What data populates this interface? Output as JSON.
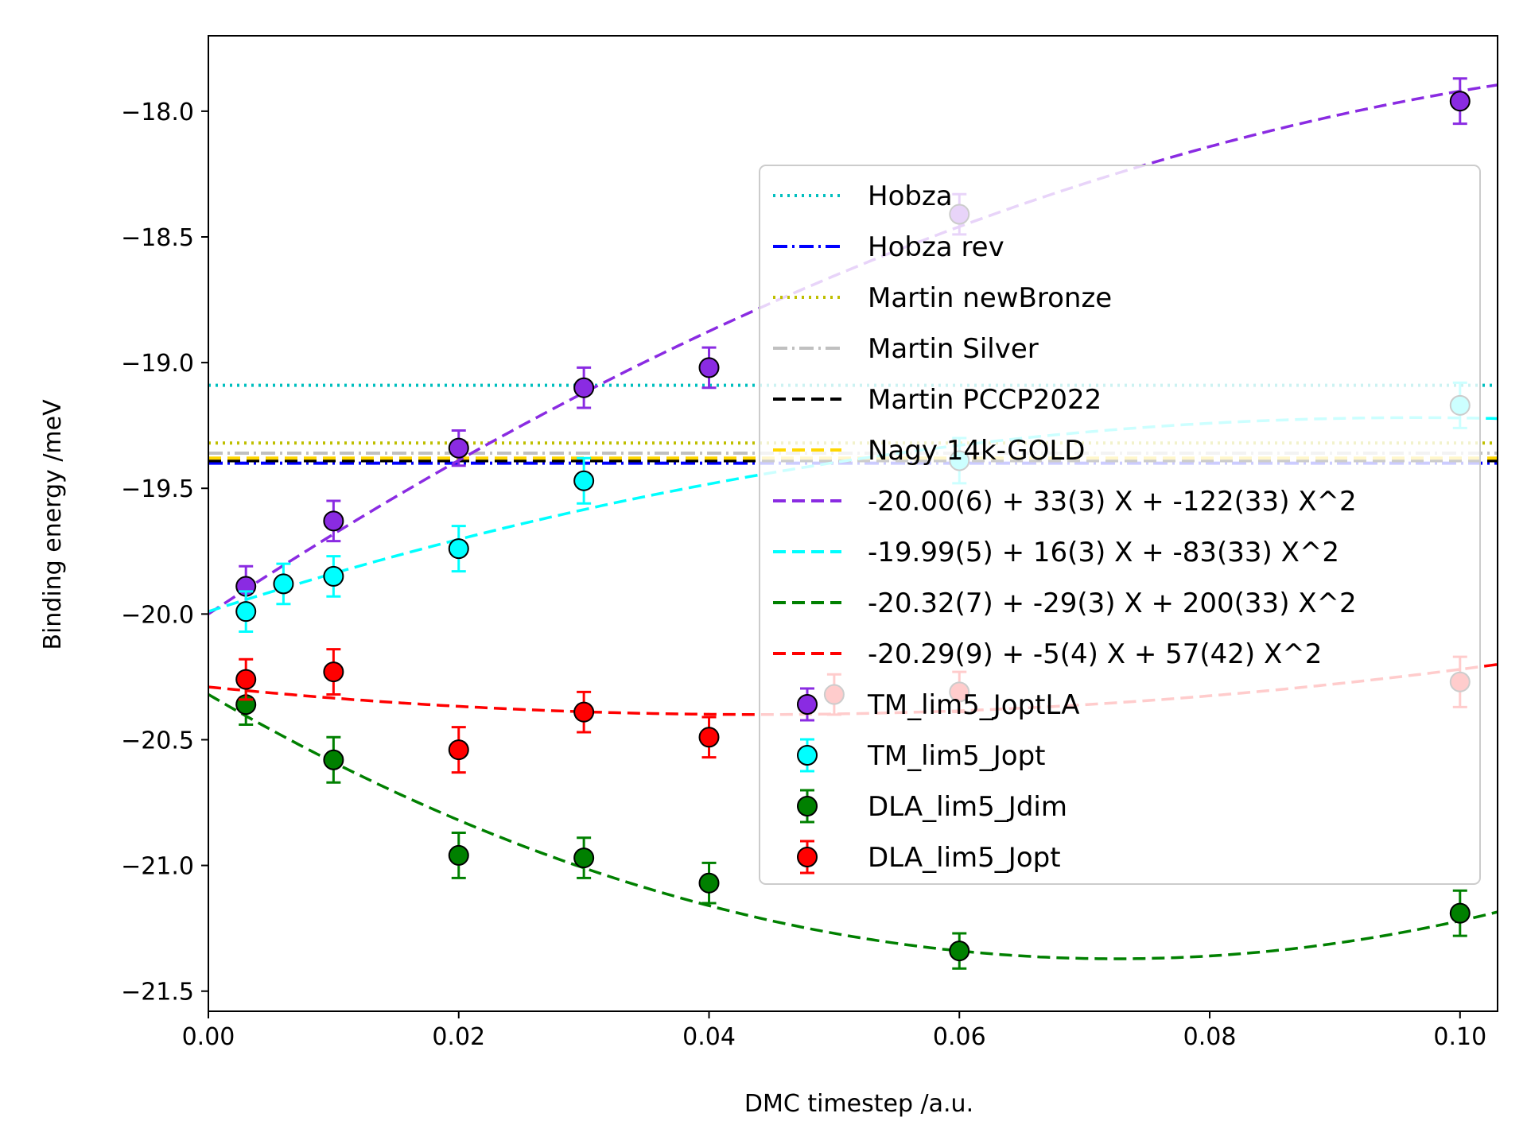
{
  "chart_data": {
    "type": "scatter",
    "xlabel": "DMC timestep /a.u.",
    "ylabel": "Binding energy /meV",
    "xlim": [
      0.0,
      0.103
    ],
    "ylim": [
      -21.58,
      -17.7
    ],
    "xticks": [
      0.0,
      0.02,
      0.04,
      0.06,
      0.08,
      0.1
    ],
    "xtick_labels": [
      "0.00",
      "0.02",
      "0.04",
      "0.06",
      "0.08",
      "0.10"
    ],
    "yticks": [
      -18.0,
      -18.5,
      -19.0,
      -19.5,
      -20.0,
      -20.5,
      -21.0,
      -21.5
    ],
    "ytick_labels": [
      "−18.0",
      "−18.5",
      "−19.0",
      "−19.5",
      "−20.0",
      "−20.5",
      "−21.0",
      "−21.5"
    ],
    "grid": false,
    "legend_placement": "center-right",
    "reference_lines": [
      {
        "name": "Hobza",
        "y": -19.09,
        "color": "#00bfbf",
        "style": "dotted"
      },
      {
        "name": "Hobza rev",
        "y": -19.4,
        "color": "#0000ff",
        "style": "dashdot"
      },
      {
        "name": "Martin newBronze",
        "y": -19.32,
        "color": "#bfbf00",
        "style": "dotted"
      },
      {
        "name": "Martin Silver",
        "y": -19.36,
        "color": "#c0c0c0",
        "style": "dashdot"
      },
      {
        "name": "Martin PCCP2022",
        "y": -19.39,
        "color": "#000000",
        "style": "dashed"
      },
      {
        "name": "Nagy 14k-GOLD",
        "y": -19.38,
        "color": "#ffd700",
        "style": "dashed"
      }
    ],
    "fits": [
      {
        "name": "-20.00(6) + 33(3) X + -122(33) X^2",
        "coeffs": [
          -20.0,
          33,
          -122
        ],
        "color": "#8a2be2"
      },
      {
        "name": "-19.99(5) + 16(3) X + -83(33) X^2",
        "coeffs": [
          -19.99,
          16,
          -83
        ],
        "color": "#00ffff"
      },
      {
        "name": "-20.32(7) + -29(3) X + 200(33) X^2",
        "coeffs": [
          -20.32,
          -29,
          200
        ],
        "color": "#008000"
      },
      {
        "name": "-20.29(9) + -5(4) X + 57(42) X^2",
        "coeffs": [
          -20.29,
          -5,
          57
        ],
        "color": "#ff0000"
      }
    ],
    "series": [
      {
        "name": "TM_lim5_JoptLA",
        "color": "#8a2be2",
        "x": [
          0.003,
          0.01,
          0.02,
          0.03,
          0.04,
          0.06,
          0.1
        ],
        "y": [
          -19.89,
          -19.63,
          -19.34,
          -19.1,
          -19.02,
          -18.41,
          -17.96
        ],
        "err": [
          0.08,
          0.08,
          0.07,
          0.08,
          0.08,
          0.08,
          0.09
        ]
      },
      {
        "name": "TM_lim5_Jopt",
        "color": "#00ffff",
        "x": [
          0.003,
          0.006,
          0.01,
          0.02,
          0.03,
          0.06,
          0.1
        ],
        "y": [
          -19.99,
          -19.88,
          -19.85,
          -19.74,
          -19.47,
          -19.39,
          -19.17
        ],
        "err": [
          0.08,
          0.08,
          0.08,
          0.09,
          0.09,
          0.09,
          0.09
        ]
      },
      {
        "name": "DLA_lim5_Jdim",
        "color": "#008000",
        "x": [
          0.003,
          0.01,
          0.02,
          0.03,
          0.04,
          0.06,
          0.1
        ],
        "y": [
          -20.36,
          -20.58,
          -20.96,
          -20.97,
          -21.07,
          -21.34,
          -21.19
        ],
        "err": [
          0.08,
          0.09,
          0.09,
          0.08,
          0.08,
          0.07,
          0.09
        ]
      },
      {
        "name": "DLA_lim5_Jopt",
        "color": "#ff0000",
        "x": [
          0.003,
          0.01,
          0.02,
          0.03,
          0.04,
          0.05,
          0.06,
          0.1
        ],
        "y": [
          -20.26,
          -20.23,
          -20.54,
          -20.39,
          -20.49,
          -20.32,
          -20.31,
          -20.27
        ],
        "err": [
          0.08,
          0.09,
          0.09,
          0.08,
          0.08,
          0.08,
          0.08,
          0.1
        ]
      }
    ]
  }
}
